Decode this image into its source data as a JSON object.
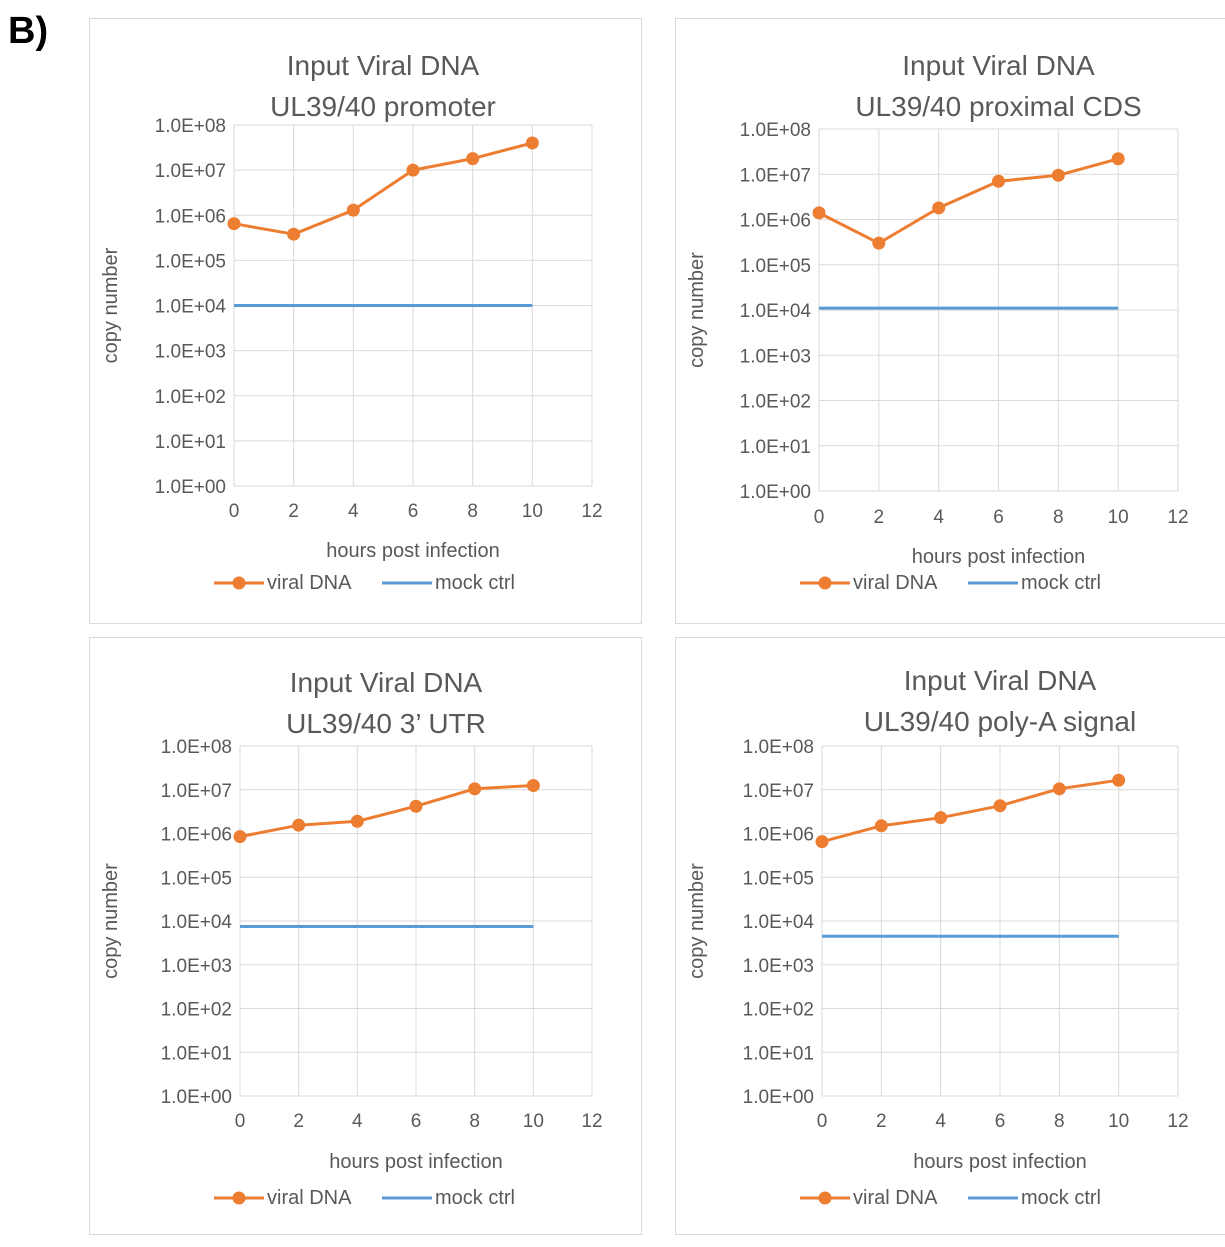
{
  "figure": {
    "panel_label": "B)"
  },
  "chart_data": [
    {
      "type": "line",
      "title": [
        "Input Viral DNA",
        "UL39/40 promoter"
      ],
      "xlabel": "hours post infection",
      "ylabel": "copy number",
      "x_ticks": [
        0,
        2,
        4,
        6,
        8,
        10,
        12
      ],
      "xlim": [
        0,
        12
      ],
      "y_ticks": [
        "1.0E+00",
        "1.0E+01",
        "1.0E+02",
        "1.0E+03",
        "1.0E+04",
        "1.0E+05",
        "1.0E+06",
        "1.0E+07",
        "1.0E+08"
      ],
      "ylim": [
        1,
        100000000
      ],
      "y_scale": "log",
      "grid": true,
      "legend": "bottom",
      "series": [
        {
          "name": "viral DNA",
          "color": "#ED7D31",
          "marker": "circle",
          "x": [
            0,
            2,
            4,
            6,
            8,
            10
          ],
          "y": [
            650000,
            380000,
            1300000,
            10000000,
            18000000,
            40000000
          ]
        },
        {
          "name": "mock ctrl",
          "color": "#5B9BD5",
          "marker": "none",
          "x": [
            0,
            10
          ],
          "y": [
            10000,
            10000
          ]
        }
      ]
    },
    {
      "type": "line",
      "title": [
        "Input Viral DNA",
        "UL39/40 proximal CDS"
      ],
      "xlabel": "hours post infection",
      "ylabel": "copy number",
      "x_ticks": [
        0,
        2,
        4,
        6,
        8,
        10,
        12
      ],
      "xlim": [
        0,
        12
      ],
      "y_ticks": [
        "1.0E+00",
        "1.0E+01",
        "1.0E+02",
        "1.0E+03",
        "1.0E+04",
        "1.0E+05",
        "1.0E+06",
        "1.0E+07",
        "1.0E+08"
      ],
      "ylim": [
        1,
        100000000
      ],
      "y_scale": "log",
      "grid": true,
      "legend": "bottom",
      "series": [
        {
          "name": "viral DNA",
          "color": "#ED7D31",
          "marker": "circle",
          "x": [
            0,
            2,
            4,
            6,
            8,
            10
          ],
          "y": [
            1400000,
            300000,
            1800000,
            7000000,
            9500000,
            22000000
          ]
        },
        {
          "name": "mock ctrl",
          "color": "#5B9BD5",
          "marker": "none",
          "x": [
            0,
            10
          ],
          "y": [
            11000,
            11000
          ]
        }
      ]
    },
    {
      "type": "line",
      "title": [
        "Input Viral DNA",
        "UL39/40 3’ UTR"
      ],
      "xlabel": "hours post infection",
      "ylabel": "copy number",
      "x_ticks": [
        0,
        2,
        4,
        6,
        8,
        10,
        12
      ],
      "xlim": [
        0,
        12
      ],
      "y_ticks": [
        "1.0E+00",
        "1.0E+01",
        "1.0E+02",
        "1.0E+03",
        "1.0E+04",
        "1.0E+05",
        "1.0E+06",
        "1.0E+07",
        "1.0E+08"
      ],
      "ylim": [
        1,
        100000000
      ],
      "y_scale": "log",
      "grid": true,
      "legend": "bottom",
      "series": [
        {
          "name": "viral DNA",
          "color": "#ED7D31",
          "marker": "circle",
          "x": [
            0,
            2,
            4,
            6,
            8,
            10
          ],
          "y": [
            850000,
            1550000,
            1900000,
            4200000,
            10500000,
            12500000
          ]
        },
        {
          "name": "mock ctrl",
          "color": "#5B9BD5",
          "marker": "none",
          "x": [
            0,
            10
          ],
          "y": [
            7500,
            7500
          ]
        }
      ]
    },
    {
      "type": "line",
      "title": [
        "Input Viral DNA",
        "UL39/40 poly-A signal"
      ],
      "xlabel": "hours post infection",
      "ylabel": "copy number",
      "x_ticks": [
        0,
        2,
        4,
        6,
        8,
        10,
        12
      ],
      "xlim": [
        0,
        12
      ],
      "y_ticks": [
        "1.0E+00",
        "1.0E+01",
        "1.0E+02",
        "1.0E+03",
        "1.0E+04",
        "1.0E+05",
        "1.0E+06",
        "1.0E+07",
        "1.0E+08"
      ],
      "ylim": [
        1,
        100000000
      ],
      "y_scale": "log",
      "grid": true,
      "legend": "bottom",
      "series": [
        {
          "name": "viral DNA",
          "color": "#ED7D31",
          "marker": "circle",
          "x": [
            0,
            2,
            4,
            6,
            8,
            10
          ],
          "y": [
            650000,
            1500000,
            2300000,
            4300000,
            10500000,
            16500000
          ]
        },
        {
          "name": "mock ctrl",
          "color": "#5B9BD5",
          "marker": "none",
          "x": [
            0,
            10
          ],
          "y": [
            4500,
            4500
          ]
        }
      ]
    }
  ]
}
